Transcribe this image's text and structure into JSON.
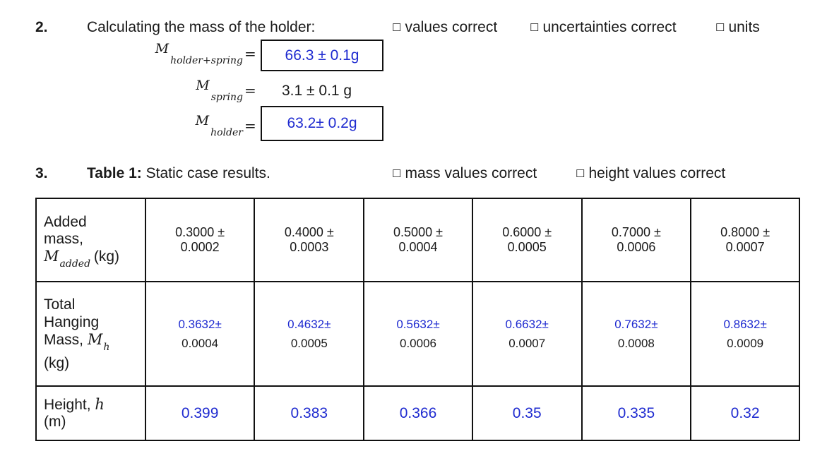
{
  "q2": {
    "number": "2.",
    "title": "Calculating the mass of the holder:",
    "checks": [
      "values correct",
      "uncertainties correct",
      "units"
    ],
    "rows": [
      {
        "var": "M",
        "sub": "holder+spring",
        "eq": "=",
        "value": "66.3 ± 0.1g"
      },
      {
        "var": "M",
        "sub": "spring",
        "eq": "=",
        "value": "3.1 ± 0.1 g"
      },
      {
        "var": "M",
        "sub": "holder",
        "eq": "=",
        "value": "63.2± 0.2g"
      }
    ]
  },
  "q3": {
    "number": "3.",
    "caption_bold": "Table 1:",
    "caption_rest": " Static case results.",
    "checks": [
      "mass values correct",
      "height values correct"
    ]
  },
  "table": {
    "row1": {
      "label_a": "Added",
      "label_b": "mass,",
      "label_var": "M",
      "label_sub": "added",
      "label_unit": " (kg)",
      "cells": [
        {
          "v": "0.3000 ±",
          "u": "0.0002"
        },
        {
          "v": "0.4000 ±",
          "u": "0.0003"
        },
        {
          "v": "0.5000 ±",
          "u": "0.0004"
        },
        {
          "v": "0.6000 ±",
          "u": "0.0005"
        },
        {
          "v": "0.7000 ±",
          "u": "0.0006"
        },
        {
          "v": "0.8000 ±",
          "u": "0.0007"
        }
      ]
    },
    "row2": {
      "label_a": "Total",
      "label_b": "Hanging",
      "label_c": "Mass, ",
      "label_var": "M",
      "label_sub": "h",
      "label_unit": "(kg)",
      "cells": [
        {
          "v": "0.3632±",
          "u": "0.0004"
        },
        {
          "v": "0.4632±",
          "u": "0.0005"
        },
        {
          "v": "0.5632±",
          "u": "0.0006"
        },
        {
          "v": "0.6632±",
          "u": "0.0007"
        },
        {
          "v": "0.7632±",
          "u": "0.0008"
        },
        {
          "v": "0.8632±",
          "u": "0.0009"
        }
      ]
    },
    "row3": {
      "label_a": "Height, ",
      "label_var": "h",
      "label_unit": "(m)",
      "cells": [
        "0.399",
        "0.383",
        "0.366",
        "0.35",
        "0.335",
        "0.32"
      ]
    }
  }
}
